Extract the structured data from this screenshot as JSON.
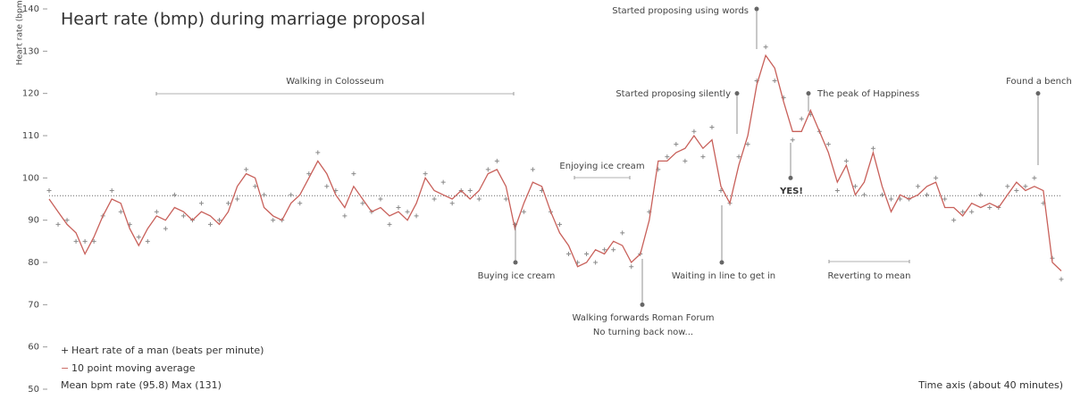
{
  "chart_data": {
    "type": "line",
    "title": "Heart rate (bmp) during marriage proposal",
    "y_label": "Heart rate (bpm)",
    "x_label": "Time axis (about 40 minutes)",
    "note": "Mean bpm rate (95.8) Max (131)",
    "mean_line": 95.8,
    "ylim": [
      50,
      140
    ],
    "yticks": [
      50,
      60,
      70,
      80,
      90,
      100,
      110,
      120,
      130,
      140
    ],
    "series": [
      {
        "name": "Heart rate of a man (beats per minute)",
        "color": "#8a8a8a",
        "values": [
          97,
          89,
          90,
          85,
          85,
          85,
          91,
          97,
          92,
          89,
          86,
          85,
          92,
          88,
          96,
          91,
          90,
          94,
          89,
          90,
          94,
          95,
          102,
          98,
          96,
          90,
          90,
          96,
          94,
          101,
          106,
          98,
          97,
          91,
          101,
          94,
          92,
          95,
          89,
          93,
          92,
          91,
          101,
          95,
          99,
          94,
          97,
          97,
          95,
          102,
          104,
          95,
          89,
          92,
          102,
          97,
          92,
          89,
          82,
          80,
          82,
          80,
          83,
          83,
          87,
          79,
          82,
          92,
          102,
          105,
          108,
          104,
          111,
          105,
          112,
          97,
          94,
          105,
          108,
          123,
          131,
          123,
          119,
          109,
          114,
          115,
          111,
          108,
          97,
          104,
          98,
          96,
          107,
          96,
          95,
          95,
          95,
          98,
          96,
          100,
          95,
          90,
          92,
          92,
          96,
          93,
          93,
          98,
          97,
          98,
          100,
          94,
          81,
          76
        ]
      },
      {
        "name": "10 point moving average",
        "color": "#c8605a",
        "values": [
          95,
          92,
          89,
          87,
          82,
          86,
          91,
          95,
          94,
          88,
          84,
          88,
          91,
          90,
          93,
          92,
          90,
          92,
          91,
          89,
          92,
          98,
          101,
          100,
          93,
          91,
          90,
          94,
          96,
          100,
          104,
          101,
          96,
          93,
          98,
          95,
          92,
          93,
          91,
          92,
          90,
          94,
          100,
          97,
          96,
          95,
          97,
          95,
          97,
          101,
          102,
          98,
          88,
          94,
          99,
          98,
          92,
          87,
          84,
          79,
          80,
          83,
          82,
          85,
          84,
          80,
          82,
          90,
          104,
          104,
          106,
          107,
          110,
          107,
          109,
          98,
          94,
          103,
          110,
          122,
          129,
          126,
          118,
          111,
          111,
          116,
          111,
          106,
          99,
          103,
          96,
          99,
          106,
          98,
          92,
          96,
          95,
          96,
          98,
          99,
          93,
          93,
          91,
          94,
          93,
          94,
          93,
          96,
          99,
          97,
          98,
          97,
          80,
          78
        ]
      }
    ],
    "annotations": [
      {
        "text": [
          "Started proposing  using words"
        ],
        "value": 140
      },
      {
        "text": [
          "Started proposing  silently"
        ],
        "value": 120
      },
      {
        "text": [
          "The peak of Happiness"
        ],
        "value": 120
      },
      {
        "text": [
          "Found a bench"
        ],
        "value": 120
      },
      {
        "text": [
          "Buying ice cream"
        ],
        "value": 80
      },
      {
        "text": [
          "Walking forwards  Roman Forum",
          "No turning back now..."
        ],
        "value": 70
      },
      {
        "text": [
          "Waiting in line to get in"
        ],
        "value": 80
      },
      {
        "text": [
          "YES!"
        ],
        "value": 100
      }
    ],
    "ranges": [
      {
        "text": "Walking in Colosseum"
      },
      {
        "text": "Enjoying ice cream"
      },
      {
        "text": "Reverting to mean"
      }
    ]
  }
}
